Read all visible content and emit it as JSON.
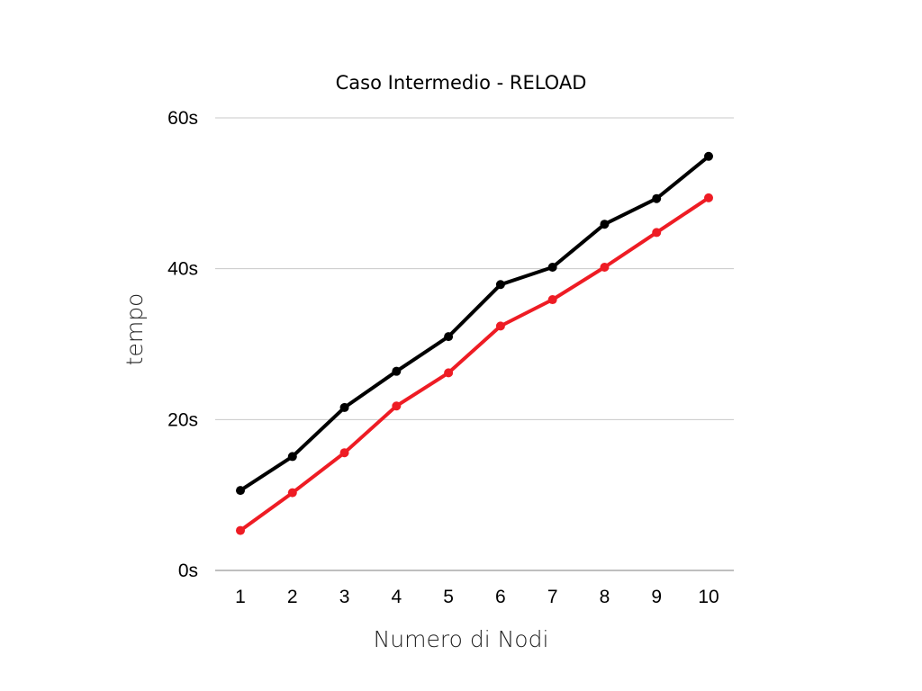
{
  "chart_data": {
    "type": "line",
    "title": "Caso Intermedio - RELOAD",
    "xlabel": "Numero di Nodi",
    "ylabel": "tempo",
    "x": [
      1,
      2,
      3,
      4,
      5,
      6,
      7,
      8,
      9,
      10
    ],
    "x_tick_labels": [
      "1",
      "2",
      "3",
      "4",
      "5",
      "6",
      "7",
      "8",
      "9",
      "10"
    ],
    "ylim": [
      0,
      60
    ],
    "y_ticks": [
      0,
      20,
      40,
      60
    ],
    "y_tick_labels": [
      "0s",
      "20s",
      "40s",
      "60s"
    ],
    "grid": true,
    "legend": "none",
    "series": [
      {
        "color": "#000000",
        "values": [
          10.6,
          15.1,
          21.6,
          26.4,
          31.0,
          37.9,
          40.2,
          45.9,
          49.3,
          54.9
        ]
      },
      {
        "color": "#ee1c24",
        "values": [
          5.3,
          10.3,
          15.6,
          21.8,
          26.2,
          32.4,
          35.9,
          40.2,
          44.8,
          49.4
        ]
      }
    ]
  }
}
